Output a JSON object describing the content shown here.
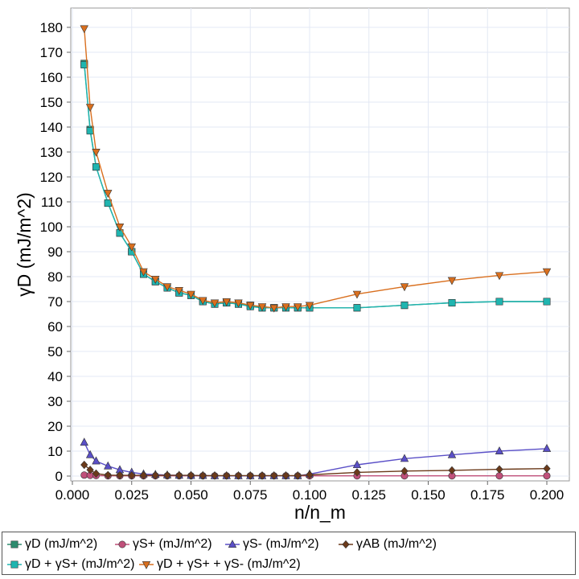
{
  "chart_data": {
    "type": "line",
    "title": "",
    "xlabel": "n/n_m",
    "ylabel": "γD (mJ/m^2)",
    "xlim": [
      0.0,
      0.2
    ],
    "ylim": [
      0,
      187
    ],
    "xticks": [
      "0.000",
      "0.025",
      "0.050",
      "0.075",
      "0.100",
      "0.125",
      "0.150",
      "0.175",
      "0.200"
    ],
    "xtick_values": [
      0.0,
      0.025,
      0.05,
      0.075,
      0.1,
      0.125,
      0.15,
      0.175,
      0.2
    ],
    "yticks": [
      "0",
      "10",
      "20",
      "30",
      "40",
      "50",
      "60",
      "70",
      "80",
      "90",
      "100",
      "110",
      "120",
      "130",
      "140",
      "150",
      "160",
      "170",
      "180"
    ],
    "ytick_values": [
      0,
      10,
      20,
      30,
      40,
      50,
      60,
      70,
      80,
      90,
      100,
      110,
      120,
      130,
      140,
      150,
      160,
      170,
      180
    ],
    "grid": true,
    "legend_position": "bottom",
    "x": [
      0.005,
      0.0075,
      0.01,
      0.015,
      0.02,
      0.025,
      0.03,
      0.035,
      0.04,
      0.045,
      0.05,
      0.055,
      0.06,
      0.065,
      0.07,
      0.075,
      0.08,
      0.085,
      0.09,
      0.095,
      0.1,
      0.12,
      0.14,
      0.16,
      0.18,
      0.2
    ],
    "series": [
      {
        "name": "γD (mJ/m^2)",
        "color": "#2e8b6e",
        "marker": "square",
        "values": [
          165.5,
          139.0,
          124.0,
          109.5,
          97.5,
          90.0,
          81.0,
          78.0,
          75.5,
          73.5,
          72.5,
          70.0,
          69.0,
          69.5,
          69.0,
          68.5,
          67.5,
          67.5,
          67.5,
          67.5,
          67.5,
          67.5,
          68.5,
          69.5,
          70.0,
          70.0
        ]
      },
      {
        "name": "γS+ (mJ/m^2)",
        "color": "#c0507a",
        "marker": "circle",
        "values": [
          0.4,
          0.3,
          0.2,
          0.1,
          0.1,
          0.1,
          0.1,
          0.1,
          0.1,
          0.1,
          0.1,
          0.1,
          0.1,
          0.1,
          0.1,
          0.1,
          0.1,
          0.1,
          0.1,
          0.1,
          0.1,
          0.1,
          0.1,
          0.1,
          0.1,
          0.1
        ]
      },
      {
        "name": "γS- (mJ/m^2)",
        "color": "#5a4fc7",
        "marker": "triangle-up",
        "values": [
          13.5,
          8.5,
          6.0,
          4.0,
          2.5,
          1.5,
          0.8,
          0.6,
          0.4,
          0.3,
          0.2,
          0.2,
          0.1,
          0.1,
          0.1,
          0.1,
          0.1,
          0.1,
          0.1,
          0.1,
          0.8,
          4.5,
          7.0,
          8.5,
          10.0,
          11.0
        ]
      },
      {
        "name": "γAB (mJ/m^2)",
        "color": "#6b3a1a",
        "marker": "diamond",
        "values": [
          4.5,
          2.5,
          1.0,
          0.4,
          0.3,
          0.3,
          0.3,
          0.3,
          0.3,
          0.3,
          0.3,
          0.2,
          0.2,
          0.2,
          0.2,
          0.2,
          0.2,
          0.2,
          0.2,
          0.2,
          0.5,
          1.5,
          2.0,
          2.3,
          2.7,
          3.0
        ]
      },
      {
        "name": "γD + γS+ (mJ/m^2)",
        "color": "#1fb5b0",
        "marker": "square",
        "values": [
          165.0,
          138.5,
          124.0,
          109.5,
          97.5,
          90.0,
          81.0,
          78.0,
          75.5,
          73.5,
          72.5,
          70.0,
          69.0,
          69.5,
          69.0,
          68.0,
          67.5,
          67.5,
          67.5,
          67.5,
          67.5,
          67.5,
          68.5,
          69.5,
          70.0,
          70.0
        ]
      },
      {
        "name": "γD + γS+ + γS- (mJ/m^2)",
        "color": "#d96f1e",
        "marker": "triangle-down",
        "values": [
          179.5,
          148.0,
          130.0,
          113.5,
          100.0,
          92.0,
          82.0,
          79.0,
          76.0,
          74.5,
          73.0,
          70.5,
          69.5,
          70.0,
          69.5,
          68.5,
          68.0,
          67.5,
          68.0,
          68.0,
          68.5,
          73.0,
          76.0,
          78.5,
          80.5,
          82.0
        ]
      }
    ]
  }
}
